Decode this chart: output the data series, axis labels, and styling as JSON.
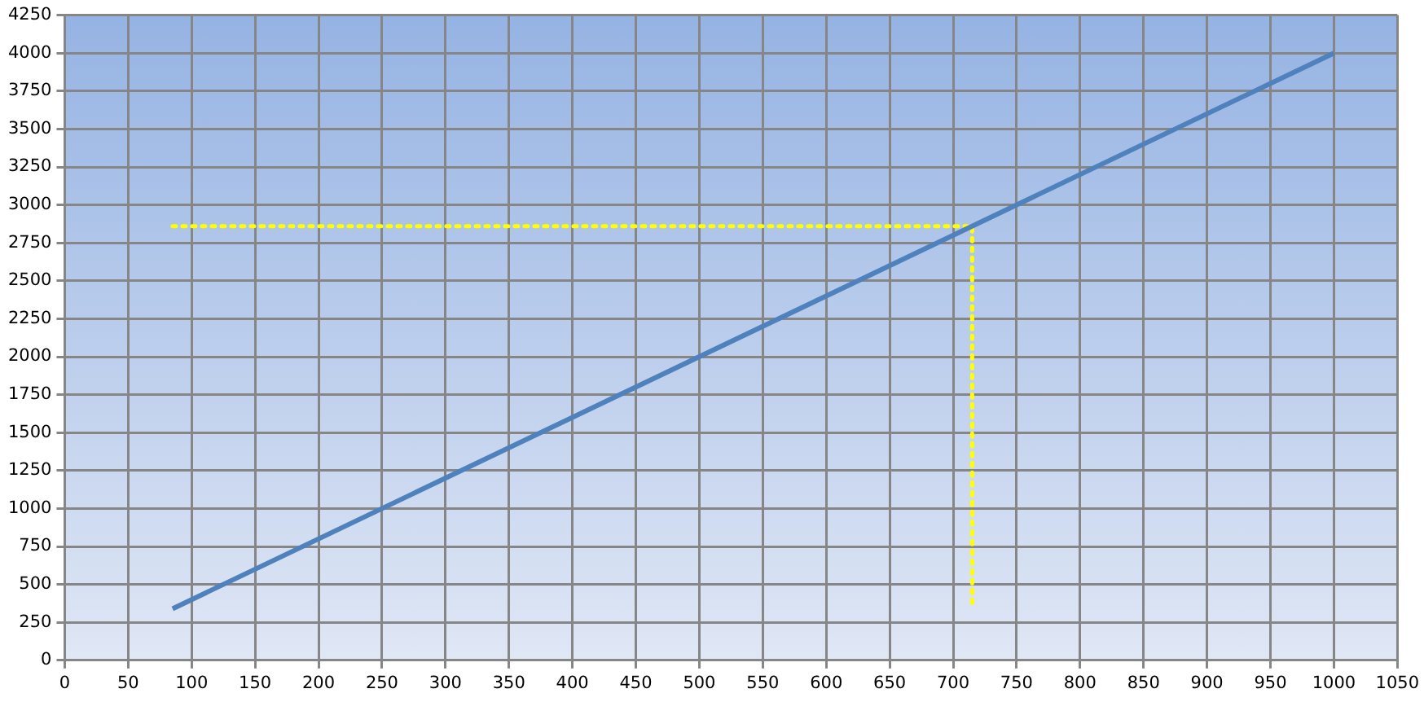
{
  "chart_data": {
    "type": "line",
    "xlim": [
      0,
      1050
    ],
    "ylim": [
      0,
      4250
    ],
    "xticks": [
      0,
      50,
      100,
      150,
      200,
      250,
      300,
      350,
      400,
      450,
      500,
      550,
      600,
      650,
      700,
      750,
      800,
      850,
      900,
      950,
      1000,
      1050
    ],
    "yticks": [
      0,
      250,
      500,
      750,
      1000,
      1250,
      1500,
      1750,
      2000,
      2250,
      2500,
      2750,
      3000,
      3250,
      3500,
      3750,
      4000,
      4250
    ],
    "grid": true,
    "legend": false,
    "marker": "none",
    "series": [
      {
        "x": [
          85,
          1000
        ],
        "values": [
          340,
          4000
        ],
        "color": "#4f81bd",
        "line_style": "solid"
      },
      {
        "x": [
          85,
          715,
          715
        ],
        "values": [
          2860,
          2860,
          345
        ],
        "color": "#ffff00",
        "line_style": "dotted"
      }
    ]
  }
}
